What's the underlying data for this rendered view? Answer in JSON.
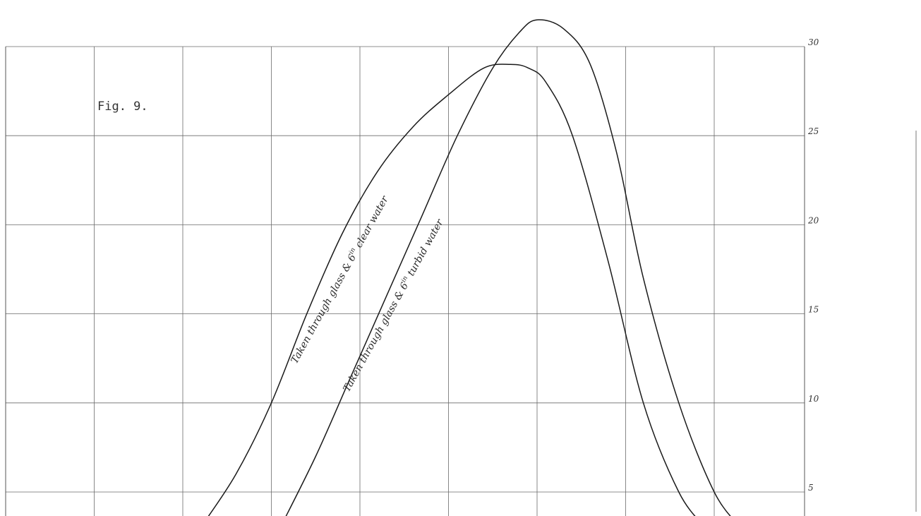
{
  "chart_data": {
    "type": "line",
    "figure_label": "Fig. 9.",
    "y_ticks": [
      "5",
      "10",
      "15",
      "20",
      "25",
      "30"
    ],
    "ylim": [
      3,
      32
    ],
    "xlim": [
      0,
      9.2
    ],
    "grid": true,
    "series": [
      {
        "name": "Taken through glass & 6in clear water",
        "x": [
          2.2,
          2.6,
          3.0,
          3.4,
          3.8,
          4.2,
          4.6,
          5.0,
          5.4,
          5.7,
          5.9,
          6.1,
          6.4,
          6.8,
          7.2,
          7.6,
          7.9
        ],
        "y": [
          3.0,
          6.0,
          10.0,
          15.0,
          19.5,
          23.0,
          25.5,
          27.3,
          28.8,
          29.0,
          28.8,
          28.0,
          25.0,
          18.0,
          10.0,
          5.0,
          3.0
        ]
      },
      {
        "name": "Taken through glass & 6in turbid water",
        "x": [
          3.1,
          3.5,
          3.9,
          4.3,
          4.7,
          5.1,
          5.5,
          5.8,
          6.0,
          6.3,
          6.6,
          6.9,
          7.2,
          7.6,
          8.0,
          8.3
        ],
        "y": [
          3.0,
          7.0,
          11.5,
          16.0,
          20.5,
          25.0,
          28.8,
          30.8,
          31.5,
          31.0,
          29.0,
          24.0,
          17.0,
          10.0,
          5.0,
          3.0
        ]
      }
    ]
  },
  "labels": {
    "curve_clear": "Taken through glass & 6",
    "curve_clear_sup": "in",
    "curve_clear_end": " clear water",
    "curve_turbid": "Taken through glass & 6",
    "curve_turbid_sup": "in",
    "curve_turbid_end": " turbid water"
  }
}
